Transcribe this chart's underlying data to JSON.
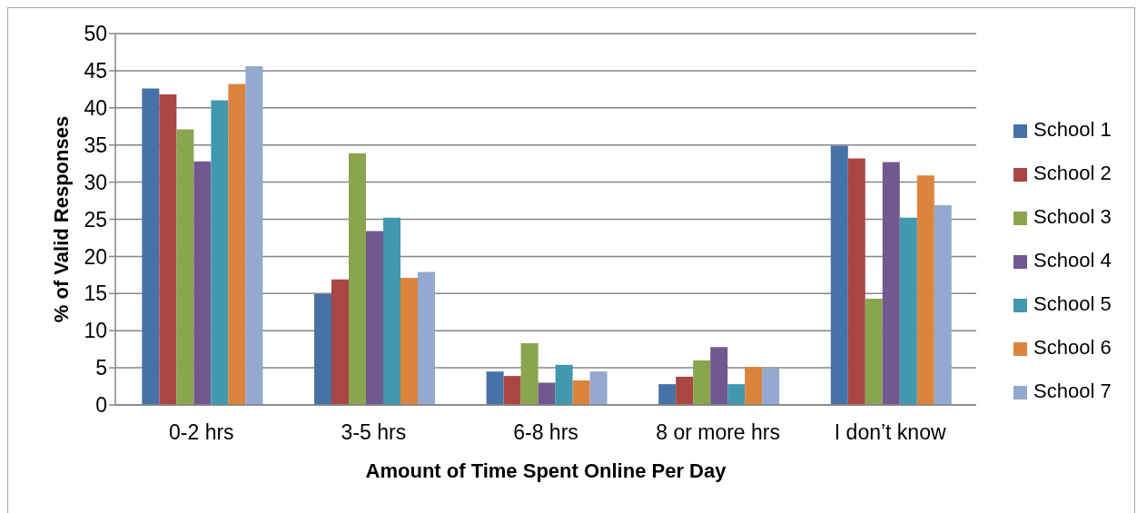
{
  "chart_data": {
    "type": "bar",
    "xlabel": "Amount of Time Spent Online Per Day",
    "ylabel": "% of Valid Responses",
    "categories": [
      "0-2 hrs",
      "3-5 hrs",
      "6-8 hrs",
      "8 or more hrs",
      "I don’t know"
    ],
    "series": [
      {
        "name": "School 1",
        "color": "#4572a7",
        "values": [
          42.6,
          14.9,
          4.5,
          2.8,
          34.9
        ]
      },
      {
        "name": "School 2",
        "color": "#aa4643",
        "values": [
          41.8,
          16.9,
          3.9,
          3.8,
          33.2
        ]
      },
      {
        "name": "School 3",
        "color": "#89a54e",
        "values": [
          37.1,
          33.9,
          8.3,
          6.0,
          14.3
        ]
      },
      {
        "name": "School 4",
        "color": "#71588f",
        "values": [
          32.8,
          23.4,
          3.0,
          7.8,
          32.7
        ]
      },
      {
        "name": "School 5",
        "color": "#4198af",
        "values": [
          41.0,
          25.2,
          5.4,
          2.8,
          25.2
        ]
      },
      {
        "name": "School 6",
        "color": "#db843d",
        "values": [
          43.2,
          17.1,
          3.3,
          5.1,
          30.9
        ]
      },
      {
        "name": "School 7",
        "color": "#93a9cf",
        "values": [
          45.6,
          17.9,
          4.5,
          4.9,
          26.9
        ]
      }
    ],
    "ylim": [
      0,
      50
    ],
    "yticks": [
      0,
      5,
      10,
      15,
      20,
      25,
      30,
      35,
      40,
      45,
      50
    ],
    "grid": "y",
    "legend": "right"
  }
}
